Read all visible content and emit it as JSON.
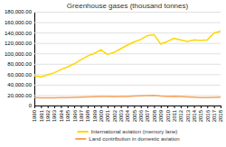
{
  "chart_data": {
    "type": "line",
    "title": "Greenhouse gases (thousand tonnes)",
    "x": [
      1990,
      1991,
      1992,
      1993,
      1994,
      1995,
      1996,
      1997,
      1998,
      1999,
      2000,
      2001,
      2002,
      2003,
      2004,
      2005,
      2006,
      2007,
      2008,
      2009,
      2010,
      2011,
      2012,
      2013,
      2014,
      2015,
      2016,
      2017,
      2018
    ],
    "series": [
      {
        "name": "International aviation (memory lane)",
        "color": "#ffd700",
        "values": [
          57000,
          55000,
          59000,
          63000,
          69000,
          74000,
          80000,
          88000,
          95000,
          100000,
          107000,
          98000,
          102000,
          109000,
          116000,
          122000,
          127000,
          134000,
          136000,
          118000,
          123000,
          129000,
          126000,
          123000,
          126000,
          125000,
          126000,
          139000,
          143000
        ]
      },
      {
        "name": "Land contribution in domestic aviation",
        "color": "#f4a460",
        "values": [
          15200,
          14500,
          14800,
          14600,
          15000,
          15200,
          15500,
          16000,
          16500,
          17000,
          17500,
          17200,
          17000,
          17200,
          17500,
          18000,
          18500,
          19000,
          19500,
          18000,
          17500,
          17800,
          17200,
          16500,
          15800,
          15200,
          15000,
          15500,
          16000
        ]
      }
    ],
    "xlim": [
      1990,
      2018
    ],
    "xticks": [
      1990,
      1991,
      1992,
      1993,
      1994,
      1995,
      1996,
      1997,
      1998,
      1999,
      2000,
      2001,
      2002,
      2003,
      2004,
      2005,
      2006,
      2007,
      2008,
      2009,
      2010,
      2011,
      2012,
      2013,
      2014,
      2015,
      2016,
      2017,
      2018
    ],
    "ylim": [
      0,
      180000
    ],
    "yticks": [
      0,
      {
        "value": 20000,
        "label": "20,000.00"
      },
      {
        "value": 40000,
        "label": "40,000.00"
      },
      {
        "value": 60000,
        "label": "60,000.00"
      },
      {
        "value": 80000,
        "label": "80,000.00"
      },
      {
        "value": 100000,
        "label": "100,000.00"
      },
      {
        "value": 120000,
        "label": "120,000.00"
      },
      {
        "value": 140000,
        "label": "140,000.00"
      },
      {
        "value": 160000,
        "label": "160,000.00"
      },
      {
        "value": 180000,
        "label": "180,000.00"
      }
    ],
    "grid": true,
    "legend": "bottom"
  }
}
